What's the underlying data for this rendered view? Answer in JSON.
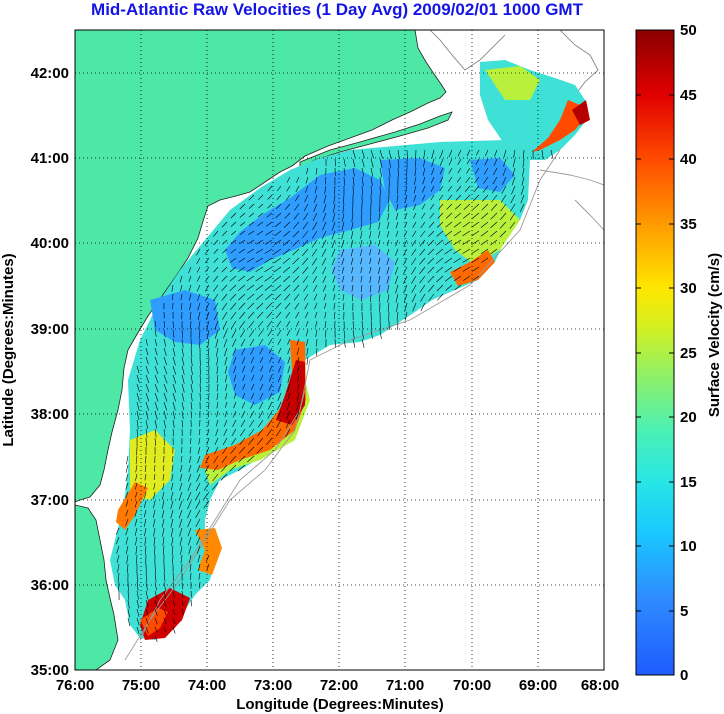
{
  "title": "Mid-Atlantic Raw Velocities (1 Day Avg) 2009/02/01 1000 GMT",
  "axes": {
    "xlabel": "Longitude (Degrees:Minutes)",
    "ylabel": "Latitude (Degrees:Minutes)",
    "x_ticks": [
      "76:00",
      "75:00",
      "74:00",
      "73:00",
      "72:00",
      "71:00",
      "70:00",
      "69:00",
      "68:00"
    ],
    "y_ticks": [
      "35:00",
      "36:00",
      "37:00",
      "38:00",
      "39:00",
      "40:00",
      "41:00",
      "42:00"
    ]
  },
  "colorbar": {
    "label": "Surface Velocity (cm/s)",
    "ticks": [
      "0",
      "5",
      "10",
      "15",
      "20",
      "25",
      "30",
      "35",
      "40",
      "45",
      "50"
    ],
    "min": 0,
    "max": 50
  },
  "colors": {
    "land": "#4de8a6",
    "title": "#1414e6",
    "grid": "#000000"
  },
  "map": {
    "lon_range": [
      -76,
      -68
    ],
    "lat_range": [
      35,
      42.5
    ],
    "grid": "dotted",
    "field": "surface current velocity"
  }
}
